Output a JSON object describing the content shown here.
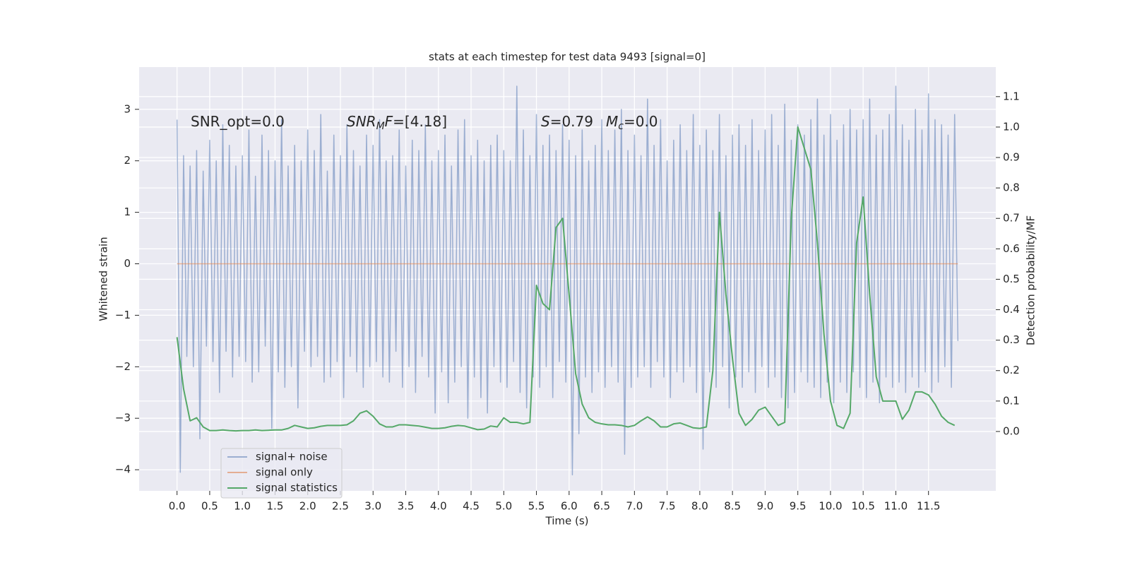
{
  "chart_data": {
    "type": "line",
    "title": "stats at each timestep for test data 9493 [signal=0]",
    "xlabel": "Time (s)",
    "ylabel": "Whitened strain",
    "y2label": "Detection probability/MF",
    "annotations": [
      [
        {
          "text": "SNR_opt=0.0"
        }
      ],
      [
        {
          "text": "SNR",
          "italic": true
        },
        {
          "text": "M",
          "italic": true,
          "sub": true
        },
        {
          "text": "F",
          "italic": true
        },
        {
          "text": "=[4.18]"
        }
      ],
      [
        {
          "text": "S",
          "italic": true
        },
        {
          "text": "=0.79"
        }
      ],
      [
        {
          "text": "M",
          "italic": true
        },
        {
          "text": "c",
          "italic": true,
          "sub": true
        },
        {
          "text": "=0.0"
        }
      ]
    ],
    "xlim": [
      -0.58,
      12.53
    ],
    "ylim": [
      -4.41,
      3.82
    ],
    "y2lim": [
      -0.195,
      1.197
    ],
    "xticks": [
      {
        "value": 0,
        "label": "0.0"
      },
      0.5,
      {
        "value": 1,
        "label": "1.0"
      },
      1.5,
      {
        "value": 2,
        "label": "2.0"
      },
      2.5,
      {
        "value": 3,
        "label": "3.0"
      },
      3.5,
      {
        "value": 4,
        "label": "4.0"
      },
      4.5,
      {
        "value": 5,
        "label": "5.0"
      },
      5.5,
      {
        "value": 6,
        "label": "6.0"
      },
      6.5,
      {
        "value": 7,
        "label": "7.0"
      },
      7.5,
      {
        "value": 8,
        "label": "8.0"
      },
      8.5,
      {
        "value": 9,
        "label": "9.0"
      },
      9.5,
      {
        "value": 10,
        "label": "10.0"
      },
      10.5,
      {
        "value": 11,
        "label": "11.0"
      },
      11.5
    ],
    "yticks": [
      {
        "value": -4,
        "label": "−4"
      },
      {
        "value": -3,
        "label": "−3"
      },
      {
        "value": -2,
        "label": "−2"
      },
      {
        "value": -1,
        "label": "−1"
      },
      0,
      1,
      2,
      3
    ],
    "y2ticks": [
      {
        "value": 0,
        "label": "0.0"
      },
      0.1,
      0.2,
      0.3,
      0.4,
      0.5,
      0.6,
      0.7,
      0.8,
      0.9,
      {
        "value": 1,
        "label": "1.0"
      },
      1.1
    ],
    "grid": true,
    "legend": "lower left",
    "series": [
      {
        "name": "signal+ noise",
        "color": "#4c72b0",
        "opacity": 0.5,
        "x": [
          0,
          0.05,
          0.1,
          0.15,
          0.2,
          0.25,
          0.3,
          0.35,
          0.4,
          0.45,
          0.5,
          0.55,
          0.6,
          0.65,
          0.7,
          0.75,
          0.8,
          0.85,
          0.9,
          0.95,
          1,
          1.05,
          1.1,
          1.15,
          1.2,
          1.25,
          1.3,
          1.35,
          1.4,
          1.45,
          1.5,
          1.55,
          1.6,
          1.65,
          1.7,
          1.75,
          1.8,
          1.85,
          1.9,
          1.95,
          2,
          2.05,
          2.1,
          2.15,
          2.2,
          2.25,
          2.3,
          2.35,
          2.4,
          2.45,
          2.5,
          2.55,
          2.6,
          2.65,
          2.7,
          2.75,
          2.8,
          2.85,
          2.9,
          2.95,
          3,
          3.05,
          3.1,
          3.15,
          3.2,
          3.25,
          3.3,
          3.35,
          3.4,
          3.45,
          3.5,
          3.55,
          3.6,
          3.65,
          3.7,
          3.75,
          3.8,
          3.85,
          3.9,
          3.95,
          4,
          4.05,
          4.1,
          4.15,
          4.2,
          4.25,
          4.3,
          4.35,
          4.4,
          4.45,
          4.5,
          4.55,
          4.6,
          4.65,
          4.7,
          4.75,
          4.8,
          4.85,
          4.9,
          4.95,
          5,
          5.05,
          5.1,
          5.15,
          5.2,
          5.25,
          5.3,
          5.35,
          5.4,
          5.45,
          5.5,
          5.55,
          5.6,
          5.65,
          5.7,
          5.75,
          5.8,
          5.85,
          5.9,
          5.95,
          6,
          6.05,
          6.1,
          6.15,
          6.2,
          6.25,
          6.3,
          6.35,
          6.4,
          6.45,
          6.5,
          6.55,
          6.6,
          6.65,
          6.7,
          6.75,
          6.8,
          6.85,
          6.9,
          6.95,
          7,
          7.05,
          7.1,
          7.15,
          7.2,
          7.25,
          7.3,
          7.35,
          7.4,
          7.45,
          7.5,
          7.55,
          7.6,
          7.65,
          7.7,
          7.75,
          7.8,
          7.85,
          7.9,
          7.95,
          8,
          8.05,
          8.1,
          8.15,
          8.2,
          8.25,
          8.3,
          8.35,
          8.4,
          8.45,
          8.5,
          8.55,
          8.6,
          8.65,
          8.7,
          8.75,
          8.8,
          8.85,
          8.9,
          8.95,
          9,
          9.05,
          9.1,
          9.15,
          9.2,
          9.25,
          9.3,
          9.35,
          9.4,
          9.45,
          9.5,
          9.55,
          9.6,
          9.65,
          9.7,
          9.75,
          9.8,
          9.85,
          9.9,
          9.95,
          10,
          10.05,
          10.1,
          10.15,
          10.2,
          10.25,
          10.3,
          10.35,
          10.4,
          10.45,
          10.5,
          10.55,
          10.6,
          10.65,
          10.7,
          10.75,
          10.8,
          10.85,
          10.9,
          10.95,
          11,
          11.05,
          11.1,
          11.15,
          11.2,
          11.25,
          11.3,
          11.35,
          11.4,
          11.45,
          11.5,
          11.55,
          11.6,
          11.65,
          11.7,
          11.75,
          11.8,
          11.85,
          11.9,
          11.95
        ],
        "values": [
          2.8,
          -4.05,
          2.1,
          -1.8,
          1.9,
          -2.0,
          2.2,
          -3.4,
          1.8,
          -1.6,
          2.4,
          -1.9,
          2.0,
          -2.5,
          2.7,
          -1.7,
          2.3,
          -2.2,
          1.9,
          -1.8,
          2.1,
          -1.9,
          2.6,
          -2.3,
          1.7,
          -2.1,
          2.5,
          -1.6,
          2.2,
          -3.2,
          2.0,
          -2.1,
          2.8,
          -2.4,
          1.9,
          -2.0,
          2.3,
          -2.8,
          2.0,
          -1.7,
          2.6,
          -2.0,
          2.2,
          -1.8,
          2.9,
          -2.3,
          1.8,
          -2.2,
          2.5,
          -1.9,
          2.1,
          -2.6,
          2.7,
          -1.8,
          2.2,
          -2.1,
          1.9,
          -2.4,
          2.5,
          -2.0,
          2.3,
          -1.9,
          2.8,
          -2.2,
          2.0,
          -2.3,
          2.1,
          -1.7,
          2.6,
          -2.4,
          1.9,
          -2.0,
          2.4,
          -2.5,
          2.2,
          -1.8,
          2.7,
          -2.2,
          2.0,
          -2.9,
          2.2,
          -2.1,
          2.5,
          -2.7,
          1.9,
          -2.3,
          2.6,
          -2.0,
          2.8,
          -3.0,
          2.1,
          -2.2,
          2.4,
          -2.6,
          2.0,
          -2.9,
          2.3,
          -2.0,
          2.5,
          -2.3,
          2.2,
          -2.4,
          2.0,
          -1.9,
          3.45,
          -2.5,
          2.6,
          -2.8,
          2.1,
          -2.2,
          2.9,
          -2.4,
          2.3,
          -2.0,
          2.5,
          -2.6,
          2.2,
          -1.9,
          2.7,
          -2.3,
          2.4,
          -4.1,
          2.1,
          -3.3,
          2.6,
          -2.2,
          2.0,
          -2.5,
          2.3,
          -2.1,
          2.8,
          -2.4,
          2.2,
          -2.0,
          2.6,
          -2.3,
          3.0,
          -3.7,
          2.2,
          -2.4,
          2.5,
          -2.2,
          2.1,
          -2.0,
          3.2,
          -2.4,
          2.3,
          -1.9,
          2.8,
          -2.2,
          2.0,
          -2.6,
          2.4,
          -2.1,
          2.7,
          -2.3,
          2.2,
          -2.0,
          2.9,
          -2.5,
          2.3,
          -3.6,
          2.6,
          -2.1,
          2.2,
          -2.4,
          2.9,
          -2.0,
          2.1,
          -2.8,
          2.5,
          -2.2,
          2.7,
          -2.4,
          2.3,
          -2.1,
          2.8,
          -2.5,
          2.2,
          -2.0,
          2.6,
          -2.4,
          2.9,
          -2.2,
          2.3,
          -2.6,
          3.1,
          -2.8,
          2.4,
          -2.5,
          2.7,
          -2.1,
          2.5,
          -2.3,
          2.8,
          -2.4,
          3.2,
          -2.6,
          2.5,
          -2.3,
          2.9,
          -2.7,
          2.4,
          -2.3,
          2.7,
          -2.5,
          3.0,
          -2.1,
          2.6,
          -2.4,
          2.8,
          -2.6,
          3.2,
          -2.3,
          2.5,
          -2.7,
          2.6,
          -2.2,
          2.9,
          -2.4,
          3.45,
          -2.3,
          2.7,
          -2.5,
          2.4,
          -2.2,
          3.0,
          -2.4,
          2.6,
          -2.1,
          3.3,
          -2.5,
          2.8,
          -2.3,
          2.7,
          -2.0,
          2.5,
          -2.4,
          2.9,
          -1.5
        ]
      },
      {
        "name": "signal only",
        "color": "#dd8452",
        "opacity": 0.6,
        "x": [
          0,
          11.95
        ],
        "values": [
          0,
          0
        ]
      },
      {
        "name": "signal statistics",
        "color": "#55a868",
        "opacity": 1,
        "axis": "y2",
        "x": [
          0,
          0.1,
          0.2,
          0.3,
          0.4,
          0.5,
          0.6,
          0.7,
          0.8,
          0.9,
          1,
          1.1,
          1.2,
          1.3,
          1.4,
          1.5,
          1.6,
          1.7,
          1.8,
          1.9,
          2,
          2.1,
          2.2,
          2.3,
          2.4,
          2.5,
          2.6,
          2.7,
          2.8,
          2.9,
          3,
          3.1,
          3.2,
          3.3,
          3.4,
          3.5,
          3.6,
          3.7,
          3.8,
          3.9,
          4,
          4.1,
          4.2,
          4.3,
          4.4,
          4.5,
          4.6,
          4.7,
          4.8,
          4.9,
          5,
          5.1,
          5.2,
          5.3,
          5.4,
          5.5,
          5.6,
          5.7,
          5.8,
          5.9,
          6,
          6.1,
          6.2,
          6.3,
          6.4,
          6.5,
          6.6,
          6.7,
          6.8,
          6.9,
          7,
          7.1,
          7.2,
          7.3,
          7.4,
          7.5,
          7.6,
          7.7,
          7.8,
          7.9,
          8,
          8.1,
          8.2,
          8.3,
          8.4,
          8.5,
          8.6,
          8.7,
          8.8,
          8.9,
          9,
          9.1,
          9.2,
          9.3,
          9.4,
          9.5,
          9.6,
          9.7,
          9.8,
          9.9,
          10,
          10.1,
          10.2,
          10.3,
          10.4,
          10.5,
          10.6,
          10.7,
          10.8,
          10.9,
          11,
          11.1,
          11.2,
          11.3,
          11.4,
          11.5,
          11.6,
          11.7,
          11.8,
          11.9
        ],
        "values": [
          0.31,
          0.14,
          0.035,
          0.045,
          0.015,
          0.003,
          0.003,
          0.005,
          0.003,
          0.002,
          0.003,
          0.003,
          0.005,
          0.003,
          0.004,
          0.005,
          0.005,
          0.01,
          0.02,
          0.015,
          0.01,
          0.012,
          0.017,
          0.02,
          0.02,
          0.02,
          0.022,
          0.035,
          0.06,
          0.068,
          0.05,
          0.025,
          0.015,
          0.015,
          0.022,
          0.022,
          0.02,
          0.018,
          0.014,
          0.01,
          0.01,
          0.012,
          0.017,
          0.02,
          0.018,
          0.012,
          0.006,
          0.008,
          0.018,
          0.015,
          0.045,
          0.03,
          0.03,
          0.025,
          0.03,
          0.48,
          0.42,
          0.4,
          0.67,
          0.7,
          0.45,
          0.19,
          0.09,
          0.045,
          0.03,
          0.025,
          0.022,
          0.022,
          0.02,
          0.015,
          0.02,
          0.035,
          0.048,
          0.035,
          0.015,
          0.015,
          0.025,
          0.028,
          0.02,
          0.012,
          0.01,
          0.015,
          0.2,
          0.72,
          0.45,
          0.24,
          0.06,
          0.02,
          0.04,
          0.07,
          0.08,
          0.05,
          0.02,
          0.03,
          0.7,
          1.0,
          0.93,
          0.86,
          0.62,
          0.32,
          0.1,
          0.02,
          0.01,
          0.06,
          0.62,
          0.77,
          0.45,
          0.18,
          0.1,
          0.1,
          0.1,
          0.04,
          0.07,
          0.13,
          0.13,
          0.12,
          0.09,
          0.05,
          0.03,
          0.02
        ]
      }
    ]
  }
}
